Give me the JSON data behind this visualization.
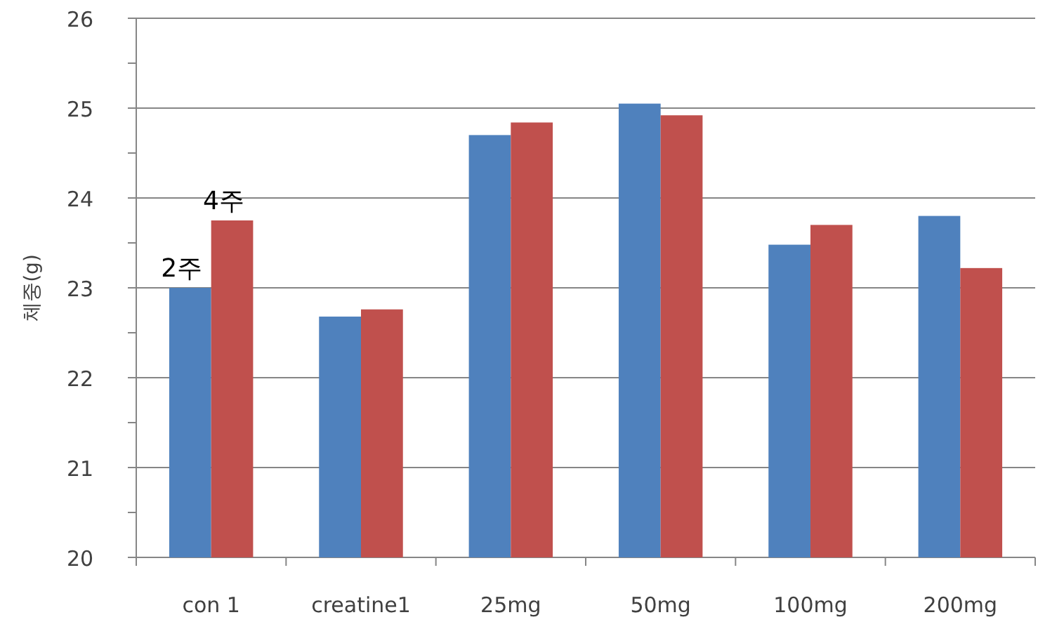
{
  "chart_data": {
    "type": "bar",
    "ylabel": "체중(g)",
    "categories": [
      "con 1",
      "creatine1",
      "25mg",
      "50mg",
      "100mg",
      "200mg"
    ],
    "series": [
      {
        "name": "2주",
        "color": "#4f81bd",
        "values": [
          23.0,
          22.68,
          24.7,
          25.05,
          23.48,
          23.8
        ]
      },
      {
        "name": "4주",
        "color": "#c0504d",
        "values": [
          23.75,
          22.76,
          24.84,
          24.92,
          23.7,
          23.22
        ]
      }
    ],
    "ylim": [
      20,
      26
    ],
    "yticks": [
      20,
      {
        "value": 20.5,
        "label": null
      },
      21,
      {
        "value": 21.5,
        "label": null
      },
      22,
      {
        "value": 22.5,
        "label": null
      },
      23,
      {
        "value": 23.5,
        "label": null
      },
      24,
      {
        "value": 24.5,
        "label": null
      },
      25,
      {
        "value": 25.5,
        "label": null
      },
      26
    ],
    "grid": "y"
  }
}
